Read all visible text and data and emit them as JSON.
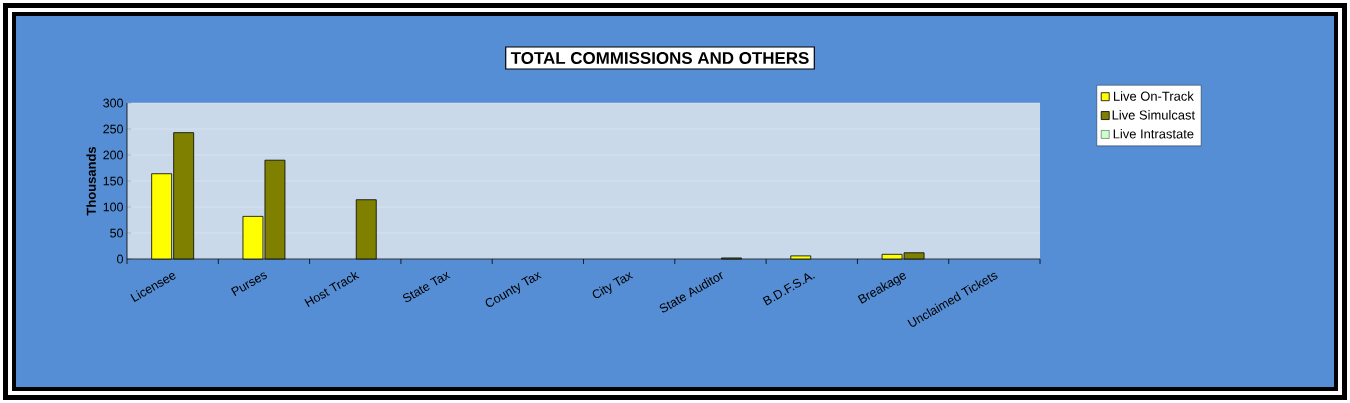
{
  "chart_data": {
    "type": "bar",
    "title": "TOTAL COMMISSIONS AND OTHERS",
    "ylabel": "Thousands",
    "categories": [
      "Licensee",
      "Purses",
      "Host Track",
      "State Tax",
      "County Tax",
      "City Tax",
      "State Auditor",
      "B.D.F.S.A.",
      "Breakage",
      "Unclaimed Tickets"
    ],
    "series": [
      {
        "name": "Live On-Track",
        "color": "#ffff00",
        "values": [
          164,
          82,
          null,
          null,
          null,
          null,
          null,
          6,
          9,
          null
        ]
      },
      {
        "name": "Live Simulcast",
        "color": "#808000",
        "values": [
          243,
          190,
          114,
          null,
          null,
          null,
          2,
          null,
          12,
          null
        ]
      },
      {
        "name": "Live Intrastate",
        "color": "#ccffcc",
        "values": [
          null,
          null,
          null,
          null,
          null,
          null,
          null,
          null,
          null,
          null
        ]
      }
    ],
    "ylim": [
      0,
      300
    ],
    "yticks": [
      0,
      50,
      100,
      150,
      200,
      250,
      300
    ],
    "grid": "y",
    "legend": "right"
  }
}
